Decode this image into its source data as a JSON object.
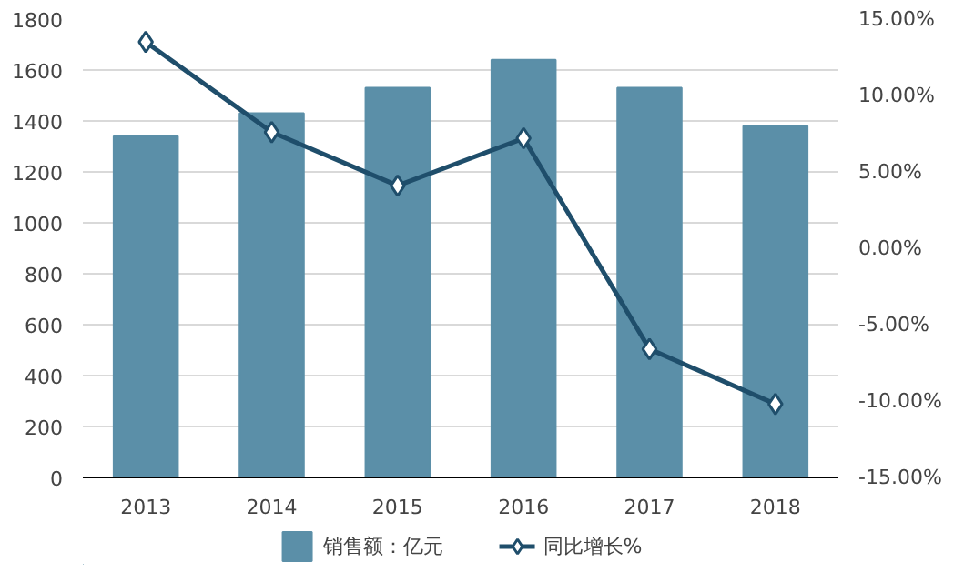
{
  "chart_data": {
    "type": "bar",
    "categories": [
      "2013",
      "2014",
      "2015",
      "2016",
      "2017",
      "2018"
    ],
    "series": [
      {
        "name": "销售额：亿元",
        "color": "#5b8fa8",
        "values": [
          1340,
          1430,
          1530,
          1640,
          1530,
          1380
        ]
      },
      {
        "name": "同比增长%",
        "type": "line",
        "axis": "y2",
        "color": "#1f4e6b",
        "marker": "diamond",
        "values": [
          13.5,
          7.6,
          4.1,
          7.2,
          -6.6,
          -10.2
        ]
      }
    ],
    "ylim": [
      0,
      1800
    ],
    "yticks": [
      0,
      200,
      400,
      600,
      800,
      1000,
      1200,
      1400,
      1600,
      1800
    ],
    "y2lim": [
      -15,
      15
    ],
    "y2ticks": [
      {
        "value": -15,
        "label": "-15.00%"
      },
      {
        "value": -10,
        "label": "-10.00%"
      },
      {
        "value": -5,
        "label": "-5.00%"
      },
      {
        "value": 0,
        "label": "0.00%"
      },
      {
        "value": 5,
        "label": "5.00%"
      },
      {
        "value": 10,
        "label": "10.00%"
      },
      {
        "value": 15,
        "label": "15.00%"
      }
    ],
    "grid": "y",
    "legend": "bottom"
  }
}
